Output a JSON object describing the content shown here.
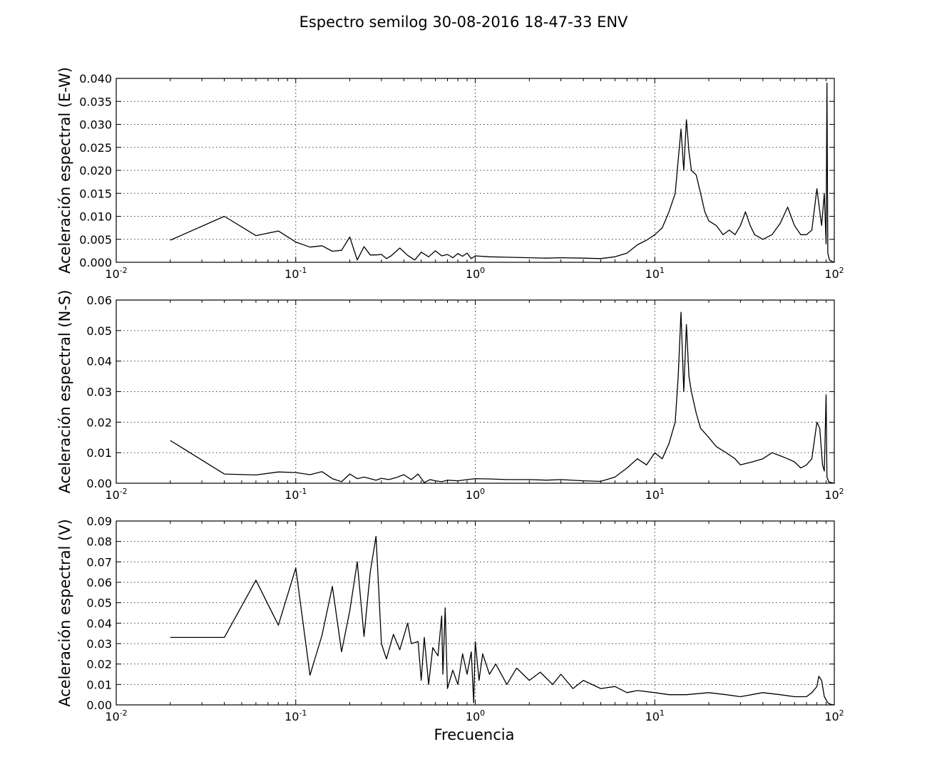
{
  "figure": {
    "title": "Espectro semilog 30-08-2016 18-47-33 ENV",
    "xlabel": "Frecuencia"
  },
  "chart_data": [
    {
      "type": "line",
      "ylabel": "Aceleración espectral (E-W)",
      "x_scale": "log",
      "xlim": [
        0.01,
        100
      ],
      "ylim": [
        0,
        0.04
      ],
      "yticks": [
        "0.000",
        "0.005",
        "0.010",
        "0.015",
        "0.020",
        "0.025",
        "0.030",
        "0.035",
        "0.040"
      ],
      "xticks": [
        {
          "base": "10",
          "exp": "-2"
        },
        {
          "base": "10",
          "exp": "-1"
        },
        {
          "base": "10",
          "exp": "0"
        },
        {
          "base": "10",
          "exp": "1"
        },
        {
          "base": "10",
          "exp": "2"
        }
      ],
      "grid": true,
      "series": [
        {
          "x": [
            0.02,
            0.04,
            0.06,
            0.08,
            0.1,
            0.12,
            0.14,
            0.16,
            0.18,
            0.2,
            0.22,
            0.24,
            0.26,
            0.28,
            0.3,
            0.32,
            0.34,
            0.38,
            0.42,
            0.46,
            0.5,
            0.55,
            0.6,
            0.65,
            0.7,
            0.75,
            0.8,
            0.85,
            0.9,
            0.95,
            1.0,
            1.2,
            1.5,
            2.0,
            2.5,
            3.0,
            4.0,
            5.0,
            6.0,
            7.0,
            8.0,
            9.0,
            10.0,
            11.0,
            12.0,
            13.0,
            14.0,
            14.5,
            15.0,
            15.5,
            16.0,
            17.0,
            18.0,
            19.0,
            20.0,
            22.0,
            24.0,
            26.0,
            28.0,
            30.0,
            32.0,
            34.0,
            36.0,
            40.0,
            45.0,
            50.0,
            55.0,
            60.0,
            65.0,
            70.0,
            75.0,
            80.0,
            85.0,
            88.0,
            90.0,
            91.0,
            92.0,
            94.0,
            97.0,
            100.0
          ],
          "y": [
            0.0048,
            0.01,
            0.0058,
            0.0068,
            0.0044,
            0.0033,
            0.0036,
            0.0024,
            0.0026,
            0.0055,
            0.0005,
            0.0034,
            0.0016,
            0.0016,
            0.0017,
            0.0008,
            0.0014,
            0.0031,
            0.0015,
            0.0005,
            0.0022,
            0.0012,
            0.0025,
            0.0014,
            0.0017,
            0.001,
            0.0019,
            0.0013,
            0.002,
            0.0008,
            0.0014,
            0.0012,
            0.0011,
            0.001,
            0.0009,
            0.001,
            0.0009,
            0.0008,
            0.0012,
            0.002,
            0.0038,
            0.0048,
            0.006,
            0.0075,
            0.011,
            0.015,
            0.029,
            0.02,
            0.031,
            0.024,
            0.02,
            0.019,
            0.015,
            0.011,
            0.009,
            0.008,
            0.006,
            0.007,
            0.006,
            0.008,
            0.011,
            0.008,
            0.006,
            0.005,
            0.006,
            0.0085,
            0.012,
            0.008,
            0.006,
            0.006,
            0.007,
            0.016,
            0.008,
            0.015,
            0.004,
            0.039,
            0.002,
            0.0005,
            0.0002,
            0.0
          ]
        }
      ]
    },
    {
      "type": "line",
      "ylabel": "Aceleración espectral (N-S)",
      "x_scale": "log",
      "xlim": [
        0.01,
        100
      ],
      "ylim": [
        0,
        0.06
      ],
      "yticks": [
        "0.00",
        "0.01",
        "0.02",
        "0.03",
        "0.04",
        "0.05",
        "0.06"
      ],
      "xticks": [
        {
          "base": "10",
          "exp": "-2"
        },
        {
          "base": "10",
          "exp": "-1"
        },
        {
          "base": "10",
          "exp": "0"
        },
        {
          "base": "10",
          "exp": "1"
        },
        {
          "base": "10",
          "exp": "2"
        }
      ],
      "grid": true,
      "series": [
        {
          "x": [
            0.02,
            0.04,
            0.06,
            0.08,
            0.1,
            0.12,
            0.14,
            0.16,
            0.18,
            0.2,
            0.22,
            0.24,
            0.26,
            0.28,
            0.3,
            0.33,
            0.36,
            0.4,
            0.44,
            0.48,
            0.52,
            0.56,
            0.6,
            0.65,
            0.7,
            0.8,
            0.9,
            1.0,
            1.2,
            1.5,
            2.0,
            2.5,
            3.0,
            4.0,
            5.0,
            6.0,
            7.0,
            8.0,
            9.0,
            10.0,
            11.0,
            12.0,
            13.0,
            13.5,
            14.0,
            14.5,
            15.0,
            15.5,
            16.0,
            17.0,
            18.0,
            20.0,
            22.0,
            25.0,
            28.0,
            30.0,
            35.0,
            40.0,
            45.0,
            50.0,
            55.0,
            60.0,
            65.0,
            70.0,
            75.0,
            80.0,
            83.0,
            86.0,
            88.0,
            90.0,
            91.0,
            93.0,
            96.0,
            100.0
          ],
          "y": [
            0.014,
            0.003,
            0.0027,
            0.0037,
            0.0035,
            0.0028,
            0.0038,
            0.0015,
            0.0005,
            0.003,
            0.0015,
            0.002,
            0.0015,
            0.001,
            0.0016,
            0.0012,
            0.0018,
            0.0028,
            0.0012,
            0.003,
            0.0002,
            0.0012,
            0.0008,
            0.0005,
            0.001,
            0.0008,
            0.0012,
            0.0015,
            0.0014,
            0.0012,
            0.0012,
            0.001,
            0.0012,
            0.0008,
            0.0006,
            0.002,
            0.005,
            0.008,
            0.006,
            0.01,
            0.008,
            0.013,
            0.02,
            0.035,
            0.056,
            0.03,
            0.052,
            0.035,
            0.03,
            0.023,
            0.018,
            0.015,
            0.012,
            0.01,
            0.008,
            0.006,
            0.007,
            0.008,
            0.01,
            0.009,
            0.008,
            0.007,
            0.005,
            0.006,
            0.008,
            0.02,
            0.018,
            0.006,
            0.004,
            0.029,
            0.002,
            0.0005,
            0.0002,
            0.0
          ]
        }
      ]
    },
    {
      "type": "line",
      "ylabel": "Aceleración espectral (V)",
      "x_scale": "log",
      "xlim": [
        0.01,
        100
      ],
      "ylim": [
        0,
        0.09
      ],
      "yticks": [
        "0.00",
        "0.01",
        "0.02",
        "0.03",
        "0.04",
        "0.05",
        "0.06",
        "0.07",
        "0.08",
        "0.09"
      ],
      "xticks": [
        {
          "base": "10",
          "exp": "-2"
        },
        {
          "base": "10",
          "exp": "-1"
        },
        {
          "base": "10",
          "exp": "0"
        },
        {
          "base": "10",
          "exp": "1"
        },
        {
          "base": "10",
          "exp": "2"
        }
      ],
      "grid": true,
      "series": [
        {
          "x": [
            0.02,
            0.04,
            0.06,
            0.08,
            0.1,
            0.12,
            0.14,
            0.16,
            0.18,
            0.2,
            0.22,
            0.24,
            0.26,
            0.28,
            0.3,
            0.32,
            0.35,
            0.38,
            0.42,
            0.44,
            0.48,
            0.5,
            0.52,
            0.55,
            0.58,
            0.62,
            0.65,
            0.66,
            0.68,
            0.7,
            0.75,
            0.8,
            0.85,
            0.9,
            0.95,
            0.98,
            1.0,
            1.05,
            1.1,
            1.2,
            1.3,
            1.5,
            1.7,
            2.0,
            2.3,
            2.7,
            3.0,
            3.5,
            4.0,
            5.0,
            6.0,
            7.0,
            8.0,
            10.0,
            12.0,
            15.0,
            20.0,
            25.0,
            30.0,
            40.0,
            50.0,
            60.0,
            70.0,
            75.0,
            80.0,
            82.0,
            85.0,
            88.0,
            92.0,
            96.0,
            100.0
          ],
          "y": [
            0.033,
            0.033,
            0.061,
            0.039,
            0.067,
            0.0145,
            0.034,
            0.058,
            0.026,
            0.046,
            0.07,
            0.0335,
            0.065,
            0.0825,
            0.03,
            0.0225,
            0.0345,
            0.027,
            0.04,
            0.03,
            0.031,
            0.012,
            0.033,
            0.01,
            0.028,
            0.024,
            0.0435,
            0.015,
            0.0475,
            0.008,
            0.017,
            0.01,
            0.025,
            0.015,
            0.026,
            0.001,
            0.031,
            0.012,
            0.025,
            0.015,
            0.02,
            0.01,
            0.018,
            0.012,
            0.016,
            0.01,
            0.015,
            0.008,
            0.012,
            0.008,
            0.009,
            0.006,
            0.007,
            0.006,
            0.005,
            0.005,
            0.006,
            0.005,
            0.004,
            0.006,
            0.005,
            0.004,
            0.004,
            0.006,
            0.009,
            0.014,
            0.012,
            0.004,
            0.001,
            0.0002,
            0.0
          ]
        }
      ]
    }
  ]
}
